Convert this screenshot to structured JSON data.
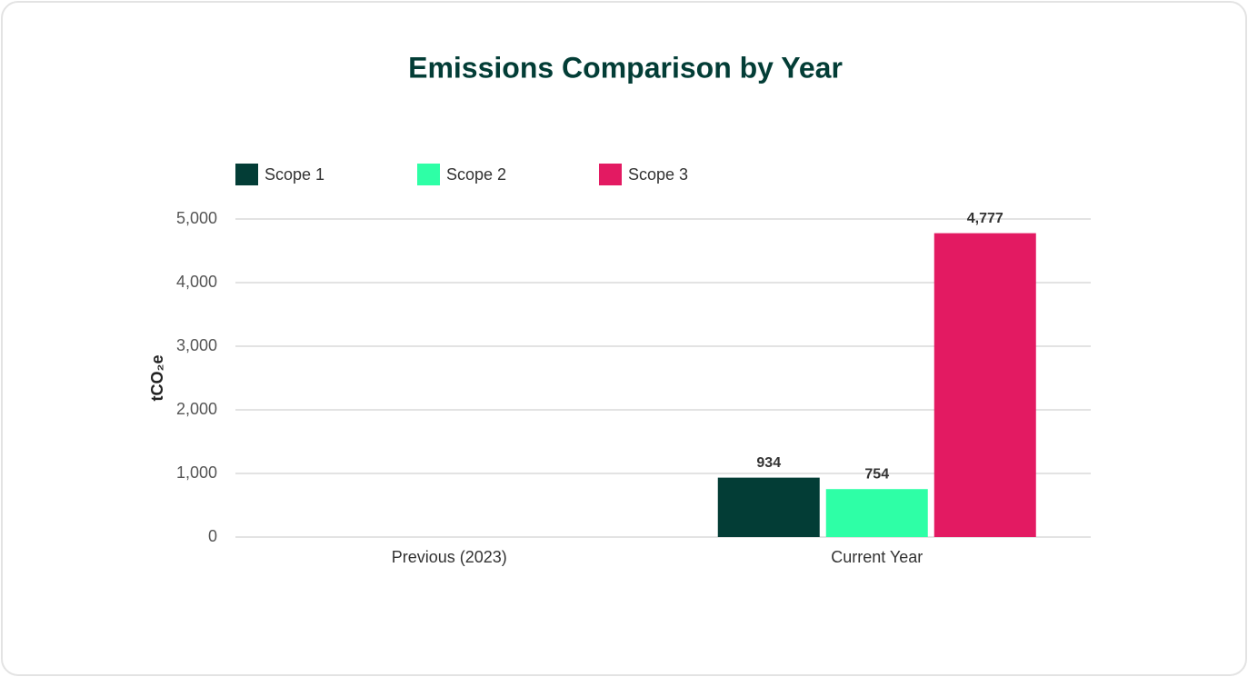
{
  "chart_data": {
    "type": "bar",
    "title": "Emissions Comparison by Year",
    "y_label": "tCO₂e",
    "categories": [
      "Previous (2023)",
      "Current Year"
    ],
    "series": [
      {
        "name": "Scope 1",
        "color": "#033d36",
        "values": [
          null,
          934
        ]
      },
      {
        "name": "Scope 2",
        "color": "#2effa6",
        "values": [
          null,
          754
        ]
      },
      {
        "name": "Scope 3",
        "color": "#e31a62",
        "values": [
          null,
          4777
        ],
        "value_labels": [
          null,
          "4,777"
        ]
      }
    ],
    "ylim": [
      0,
      5000
    ],
    "yticks": [
      0,
      {
        "value": 1000,
        "label": "1,000"
      },
      {
        "value": 2000,
        "label": "2,000"
      },
      {
        "value": 3000,
        "label": "3,000"
      },
      {
        "value": 4000,
        "label": "4,000"
      },
      {
        "value": 5000,
        "label": "5,000"
      }
    ],
    "grid": true,
    "legend": "top-left"
  }
}
